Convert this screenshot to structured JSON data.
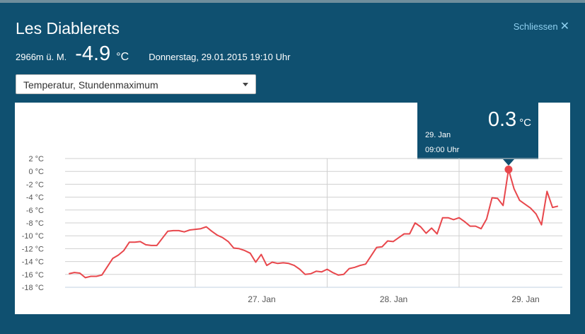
{
  "header": {
    "title": "Les Diablerets",
    "close_label": "Schliessen",
    "close_icon": "✕"
  },
  "station": {
    "altitude": "2966m ü. M.",
    "temperature": "-4.9",
    "unit": "°C",
    "datetime": "Donnerstag, 29.01.2015 19:10 Uhr"
  },
  "select": {
    "value": "Temperatur, Stundenmaximum"
  },
  "tooltip": {
    "value": "0.3",
    "unit": "°C",
    "date": "29. Jan",
    "time": "09:00 Uhr"
  },
  "colors": {
    "background": "#0f5070",
    "line": "#e8474c",
    "accent": "#8fd0f0"
  },
  "chart_data": {
    "type": "line",
    "title": "",
    "xlabel": "",
    "ylabel": "",
    "ylim": [
      -18,
      2
    ],
    "yticks": [
      "2 °C",
      "0 °C",
      "-2 °C",
      "-4 °C",
      "-6 °C",
      "-8 °C",
      "-10 °C",
      "-12 °C",
      "-14 °C",
      "-16 °C",
      "-18 °C"
    ],
    "ytick_values": [
      2,
      0,
      -2,
      -4,
      -6,
      -8,
      -10,
      -12,
      -14,
      -16,
      -18
    ],
    "xticks": [
      "27. Jan",
      "28. Jan",
      "29. Jan"
    ],
    "x_unit": "hours since 26. Jan 00:00",
    "x_start_hour": 1,
    "x_step_hours": 1,
    "series": [
      {
        "name": "Temperatur, Stundenmaximum",
        "values": [
          -15.9,
          -15.7,
          -15.8,
          -16.5,
          -16.3,
          -16.3,
          -16.1,
          -14.8,
          -13.5,
          -13.0,
          -12.3,
          -11.0,
          -11.0,
          -10.9,
          -11.4,
          -11.5,
          -11.5,
          -10.4,
          -9.3,
          -9.2,
          -9.2,
          -9.4,
          -9.1,
          -9.0,
          -8.9,
          -8.6,
          -9.3,
          -9.9,
          -10.3,
          -10.9,
          -11.9,
          -12.0,
          -12.3,
          -12.7,
          -14.1,
          -12.9,
          -14.6,
          -14.1,
          -14.3,
          -14.2,
          -14.3,
          -14.6,
          -15.2,
          -16.0,
          -15.9,
          -15.5,
          -15.6,
          -15.2,
          -15.7,
          -16.1,
          -16.0,
          -15.1,
          -14.9,
          -14.6,
          -14.4,
          -13.1,
          -11.8,
          -11.7,
          -10.8,
          -10.9,
          -10.3,
          -9.7,
          -9.7,
          -8.0,
          -8.6,
          -9.6,
          -8.8,
          -9.7,
          -7.2,
          -7.2,
          -7.5,
          -7.2,
          -7.8,
          -8.5,
          -8.5,
          -8.9,
          -7.4,
          -4.1,
          -4.2,
          -5.3,
          0.3,
          -2.7,
          -4.5,
          -5.1,
          -5.7,
          -6.6,
          -8.3,
          -3.1,
          -5.6,
          -5.4
        ]
      }
    ],
    "highlight": {
      "hour": 81,
      "value": 0.3
    },
    "grid": true,
    "legend": "none"
  }
}
